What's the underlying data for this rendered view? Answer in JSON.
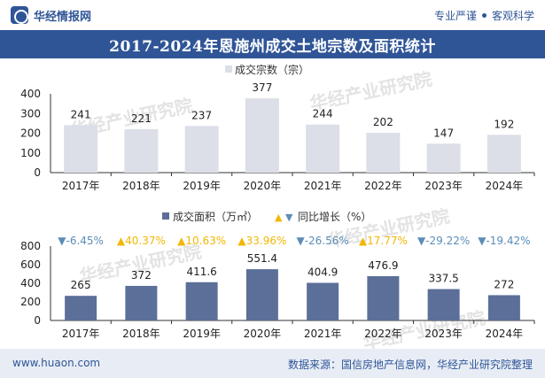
{
  "header": {
    "logo_text": "华经情报网",
    "slogan_left": "专业严谨",
    "slogan_right": "客观科学"
  },
  "title": "2017-2024年恩施州成交土地宗数及面积统计",
  "watermark": "华经产业研究院",
  "footer": {
    "url": "www.huaon.com",
    "source": "数据来源：国信房地产信息网，华经产业研究院整理"
  },
  "chart_data": [
    {
      "type": "bar",
      "categories": [
        "2017年",
        "2018年",
        "2019年",
        "2020年",
        "2021年",
        "2022年",
        "2023年",
        "2024年"
      ],
      "series": [
        {
          "name": "成交宗数（宗）",
          "values": [
            241,
            221,
            237,
            377,
            244,
            202,
            147,
            192
          ]
        }
      ],
      "ylim": [
        0,
        400
      ],
      "yticks": [
        0,
        100,
        200,
        300,
        400
      ],
      "color": "#dcdfe8",
      "legend": "top-center",
      "grid": false
    },
    {
      "type": "bar",
      "categories": [
        "2017年",
        "2018年",
        "2019年",
        "2020年",
        "2021年",
        "2022年",
        "2023年",
        "2024年"
      ],
      "series": [
        {
          "name": "成交面积（万㎡）",
          "values": [
            265,
            372,
            411.6,
            551.4,
            404.9,
            476.9,
            337.5,
            272
          ]
        },
        {
          "name": "同比增长（%）",
          "values": [
            -6.45,
            40.37,
            10.63,
            33.96,
            -26.56,
            17.77,
            -29.22,
            -19.42
          ]
        }
      ],
      "growth_labels": [
        "▼-6.45%",
        "▲40.37%",
        "▲10.63%",
        "▲33.96%",
        "▼-26.56%",
        "▲17.77%",
        "▼-29.22%",
        "▼-19.42%"
      ],
      "ylim": [
        0,
        800
      ],
      "yticks": [
        0,
        200,
        400,
        600,
        800
      ],
      "color": "#5b6f99",
      "up_color": "#f2b705",
      "down_color": "#5b8db8",
      "legend": "top-center",
      "grid": false
    }
  ]
}
